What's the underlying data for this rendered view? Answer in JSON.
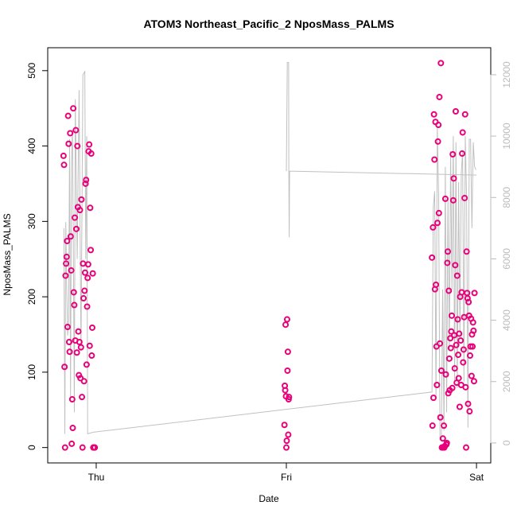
{
  "chart_data": {
    "type": "scatter",
    "title": "ATOM3 Northeast_Pacific_2 NposMass_PALMS",
    "xlabel": "Date",
    "ylabel": "NposMass_PALMS",
    "xlim": [
      -0.255,
      2.075
    ],
    "xticks": [
      {
        "value": 0,
        "label": "Thu"
      },
      {
        "value": 1,
        "label": "Fri"
      },
      {
        "value": 2,
        "label": "Sat"
      }
    ],
    "ylim": [
      -20.4,
      530.4
    ],
    "yticks": [
      0,
      100,
      200,
      300,
      400,
      500
    ],
    "y2lim": [
      -650,
      12880
    ],
    "y2ticks": [
      0,
      2000,
      4000,
      6000,
      8000,
      10000,
      12000
    ],
    "series": [
      {
        "type": "scatter",
        "color": "#e8007a",
        "x": [
          -0.172,
          -0.1693,
          -0.1666,
          -0.1639,
          -0.1612,
          -0.1585,
          -0.1558,
          -0.1531,
          -0.1504,
          -0.1477,
          -0.145,
          -0.1423,
          -0.1396,
          -0.1369,
          -0.1342,
          -0.1315,
          -0.1288,
          -0.1261,
          -0.1234,
          -0.1207,
          -0.118,
          -0.1153,
          -0.1126,
          -0.1099,
          -0.1072,
          -0.1045,
          -0.1018,
          -0.0991,
          -0.0964,
          -0.0937,
          -0.091,
          -0.0883,
          -0.0856,
          -0.0829,
          -0.0802,
          -0.0775,
          -0.0748,
          -0.0721,
          -0.0694,
          -0.0667,
          -0.064,
          -0.0613,
          -0.0586,
          -0.0559,
          -0.0532,
          -0.0505,
          -0.0478,
          -0.0451,
          -0.0424,
          -0.0397,
          -0.037,
          -0.0343,
          -0.0316,
          -0.0289,
          -0.0262,
          -0.0235,
          -0.0208,
          -0.0181,
          -0.0154,
          -0.0127,
          -0.01,
          -0.0073,
          0.99,
          0.992,
          0.994,
          0.996,
          0.998,
          1.0,
          1.002,
          1.004,
          1.006,
          1.008,
          1.01,
          1.012,
          1.014,
          1.766,
          1.7686,
          1.7712,
          1.7738,
          1.7764,
          1.779,
          1.7816,
          1.7842,
          1.7868,
          1.7894,
          1.792,
          1.7946,
          1.7972,
          1.7998,
          1.8024,
          1.805,
          1.8076,
          1.8102,
          1.8128,
          1.8154,
          1.818,
          1.8206,
          1.8232,
          1.8258,
          1.8284,
          1.831,
          1.8336,
          1.8362,
          1.8388,
          1.8414,
          1.844,
          1.8466,
          1.8492,
          1.8518,
          1.8544,
          1.857,
          1.8596,
          1.8622,
          1.8648,
          1.8674,
          1.87,
          1.8726,
          1.8752,
          1.8778,
          1.8804,
          1.883,
          1.8856,
          1.8882,
          1.8908,
          1.8934,
          1.896,
          1.8986,
          1.9012,
          1.9038,
          1.9064,
          1.909,
          1.9116,
          1.9142,
          1.9168,
          1.9194,
          1.922,
          1.9246,
          1.9272,
          1.9298,
          1.9324,
          1.935,
          1.9376,
          1.9402,
          1.9428,
          1.9454,
          1.948,
          1.9506,
          1.9532,
          1.9558,
          1.9584,
          1.961,
          1.9636,
          1.9662,
          1.9688,
          1.9714,
          1.974,
          1.9766,
          1.9792,
          1.9818,
          1.9844,
          1.987,
          1.9896
        ],
        "values": [
          387,
          375,
          107,
          0,
          228,
          244,
          253,
          274,
          160,
          440,
          403,
          140,
          127,
          417,
          280,
          235,
          5,
          64,
          26,
          450,
          206,
          189,
          305,
          142,
          421,
          290,
          126,
          400,
          319,
          154,
          96,
          140,
          315,
          92,
          133,
          329,
          67,
          0,
          244,
          198,
          88,
          208,
          232,
          350,
          355,
          110,
          187,
          225,
          243,
          393,
          402,
          135,
          318,
          262,
          390,
          122,
          159,
          231,
          0,
          0,
          0,
          0,
          30,
          82,
          76,
          163,
          68,
          0,
          9,
          170,
          102,
          127,
          17,
          64,
          67,
          252,
          29,
          292,
          66,
          442,
          382,
          210,
          432,
          216,
          134,
          83,
          298,
          406,
          428,
          311,
          465,
          138,
          40,
          510,
          102,
          0,
          0,
          12,
          0,
          29,
          0,
          2,
          330,
          97,
          4,
          6,
          245,
          260,
          72,
          208,
          118,
          76,
          145,
          132,
          154,
          175,
          79,
          389,
          328,
          357,
          149,
          105,
          242,
          446,
          136,
          86,
          228,
          170,
          123,
          92,
          151,
          54,
          200,
          142,
          83,
          206,
          390,
          418,
          113,
          130,
          173,
          331,
          442,
          80,
          0,
          260,
          205,
          198,
          58,
          193,
          175,
          48,
          122,
          134,
          171,
          95,
          150,
          134,
          166,
          155,
          88,
          205
        ]
      },
      {
        "type": "line",
        "axis": "y2",
        "color": "#c0c0c0",
        "x": [
          -0.17,
          -0.165,
          -0.16,
          -0.155,
          -0.15,
          -0.145,
          -0.14,
          -0.135,
          -0.13,
          -0.125,
          -0.12,
          -0.115,
          -0.11,
          -0.1,
          -0.09,
          -0.08,
          -0.07,
          -0.06,
          -0.055,
          -0.05,
          -0.045,
          -0.015,
          1.766,
          1.773,
          1.78,
          1.787,
          1.794,
          1.801,
          1.808,
          1.815,
          1.822,
          1.829,
          1.836,
          1.843,
          1.85,
          1.857,
          1.864,
          1.871,
          1.878,
          1.885,
          1.892,
          1.899,
          1.906,
          1.913,
          1.92,
          1.927,
          1.934,
          1.941,
          1.948,
          1.955,
          1.962,
          1.969,
          1.976,
          1.983,
          1.99,
          1.997,
          null,
          1.0,
          1.005,
          1.012,
          1.013,
          1.015,
          1.017,
          2.0
        ],
        "values": [
          7000,
          300,
          7200,
          5000,
          3500,
          4000,
          9900,
          1500,
          9000,
          10200,
          6000,
          1000,
          11200,
          6000,
          11500,
          3000,
          12000,
          12100,
          6000,
          10000,
          300,
          350,
          1660,
          7700,
          8200,
          1500,
          10300,
          8000,
          100,
          100,
          5000,
          400,
          9000,
          1000,
          8000,
          3000,
          9500,
          5000,
          10000,
          2000,
          9800,
          1800,
          8500,
          3500,
          8800,
          9500,
          2000,
          10000,
          8000,
          500,
          9900,
          9900,
          7000,
          9800,
          9000,
          8900,
          null,
          8860,
          12400,
          12400,
          8860,
          6700,
          8860,
          8730
        ]
      }
    ]
  }
}
